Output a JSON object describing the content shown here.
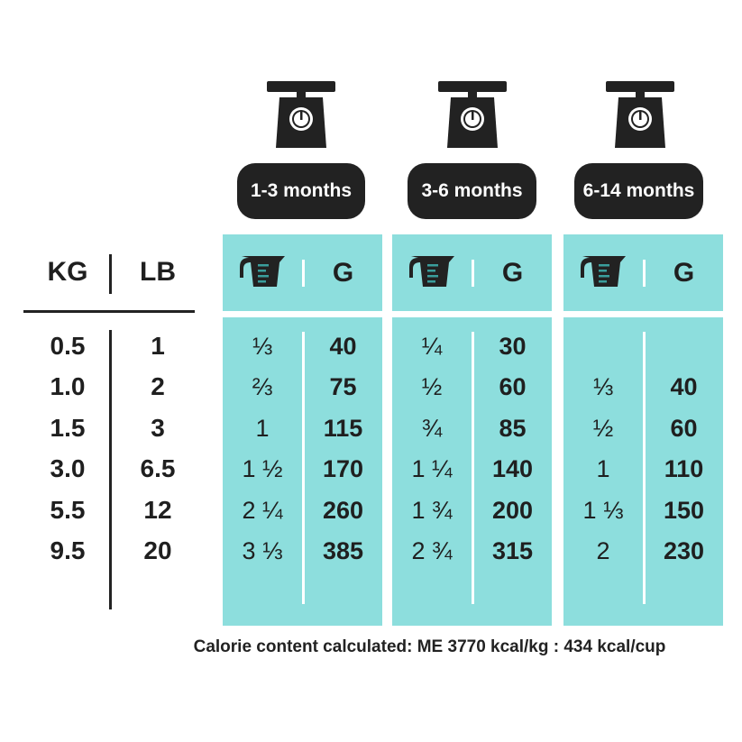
{
  "weight_header": {
    "kg": "KG",
    "lb": "LB"
  },
  "weights": [
    {
      "kg": "0.5",
      "lb": "1"
    },
    {
      "kg": "1.0",
      "lb": "2"
    },
    {
      "kg": "1.5",
      "lb": "3"
    },
    {
      "kg": "3.0",
      "lb": "6.5"
    },
    {
      "kg": "5.5",
      "lb": "12"
    },
    {
      "kg": "9.5",
      "lb": "20"
    }
  ],
  "columns": [
    {
      "age": "1-3 months",
      "unit_label": "G",
      "rows": [
        {
          "cups": "⅓",
          "grams": "40"
        },
        {
          "cups": "⅔",
          "grams": "75"
        },
        {
          "cups": "1",
          "grams": "115"
        },
        {
          "cups": "1 ½",
          "grams": "170"
        },
        {
          "cups": "2 ¼",
          "grams": "260"
        },
        {
          "cups": "3 ⅓",
          "grams": "385"
        }
      ]
    },
    {
      "age": "3-6 months",
      "unit_label": "G",
      "rows": [
        {
          "cups": "¼",
          "grams": "30"
        },
        {
          "cups": "½",
          "grams": "60"
        },
        {
          "cups": "¾",
          "grams": "85"
        },
        {
          "cups": "1 ¼",
          "grams": "140"
        },
        {
          "cups": "1 ¾",
          "grams": "200"
        },
        {
          "cups": "2 ¾",
          "grams": "315"
        }
      ]
    },
    {
      "age": "6-14 months",
      "unit_label": "G",
      "rows": [
        {
          "cups": "",
          "grams": ""
        },
        {
          "cups": "⅓",
          "grams": "40"
        },
        {
          "cups": "½",
          "grams": "60"
        },
        {
          "cups": "1",
          "grams": "110"
        },
        {
          "cups": "1 ⅓",
          "grams": "150"
        },
        {
          "cups": "2",
          "grams": "230"
        }
      ]
    }
  ],
  "colors": {
    "panel": "#8ddedd",
    "dark": "#222222",
    "icon_lines": "#3a9e9c"
  },
  "icons": {
    "age_icon": "kitchen-scale-icon",
    "unit_icon": "measuring-cup-icon"
  },
  "footnote": "Calorie content calculated: ME 3770 kcal/kg : 434 kcal/cup"
}
